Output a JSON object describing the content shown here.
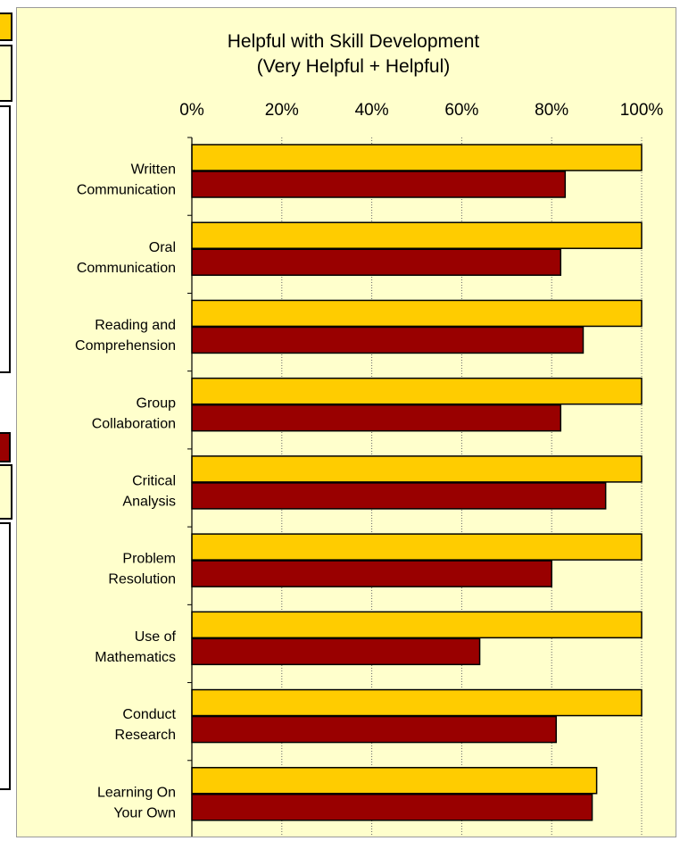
{
  "colors": {
    "panel_bg": "#FFFFCC",
    "series_1": "#FFCC00",
    "series_2": "#990000",
    "bar_outline": "#000000",
    "grid": "#666666",
    "text": "#000000"
  },
  "chart_data": {
    "type": "bar",
    "orientation": "horizontal",
    "title": "Helpful with Skill Development",
    "subtitle": "(Very Helpful + Helpful)",
    "categories": [
      [
        "Written",
        "Communication"
      ],
      [
        "Oral",
        "Communication"
      ],
      [
        "Reading and",
        "Comprehension"
      ],
      [
        "Group",
        "Collaboration"
      ],
      [
        "Critical",
        "Analysis"
      ],
      [
        "Problem",
        "Resolution"
      ],
      [
        "Use of",
        "Mathematics"
      ],
      [
        "Conduct",
        "Research"
      ],
      [
        "Learning On",
        "Your Own"
      ]
    ],
    "series": [
      {
        "color": "#FFCC00",
        "values": [
          100,
          100,
          100,
          100,
          100,
          100,
          100,
          100,
          90
        ]
      },
      {
        "color": "#990000",
        "values": [
          83,
          82,
          87,
          82,
          92,
          80,
          64,
          81,
          89
        ]
      }
    ],
    "xlim": [
      0,
      100
    ],
    "xticks": [
      "0%",
      "20%",
      "40%",
      "60%",
      "80%",
      "100%"
    ],
    "x_tick_axis_position": "top",
    "grid": "vertical",
    "legend": "none"
  }
}
